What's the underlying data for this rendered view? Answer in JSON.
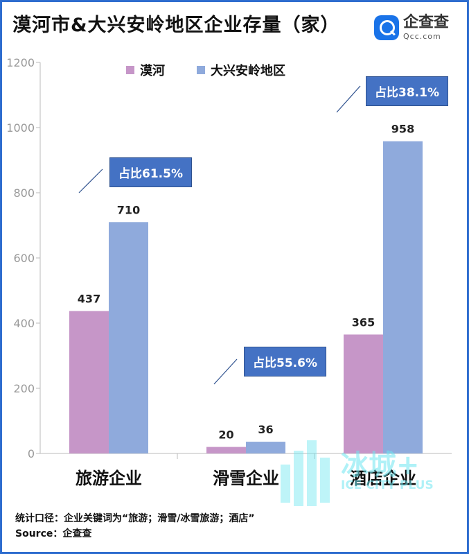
{
  "header": {
    "title": "漠河市&大兴安岭地区企业存量（家）",
    "brand_name": "企查查",
    "brand_sub": "Qcc.com"
  },
  "colors": {
    "series_mohe": "#c696c8",
    "series_dxal": "#8faadc",
    "callout": "#4472c4",
    "frame": "#2e6dcf"
  },
  "chart_data": {
    "type": "bar",
    "title": "漠河市&大兴安岭地区企业存量（家）",
    "categories": [
      "旅游企业",
      "滑雪企业",
      "酒店企业"
    ],
    "series": [
      {
        "name": "漠河",
        "values": [
          437,
          20,
          365
        ]
      },
      {
        "name": "大兴安岭地区",
        "values": [
          710,
          36,
          958
        ]
      }
    ],
    "yticks": [
      0,
      200,
      400,
      600,
      800,
      1000,
      1200
    ],
    "ylim": [
      0,
      1200
    ],
    "grid": false,
    "legend": "top",
    "annotations": [
      "占比61.5%",
      "占比55.6%",
      "占比38.1%"
    ]
  },
  "footnote": {
    "line1": "统计口径：企业关键词为“旅游；滑雪/冰雪旅游；酒店”",
    "line2": "Source：企查查"
  },
  "watermark": {
    "main": "冰城+",
    "sub": "ICE CITY PLUS"
  }
}
